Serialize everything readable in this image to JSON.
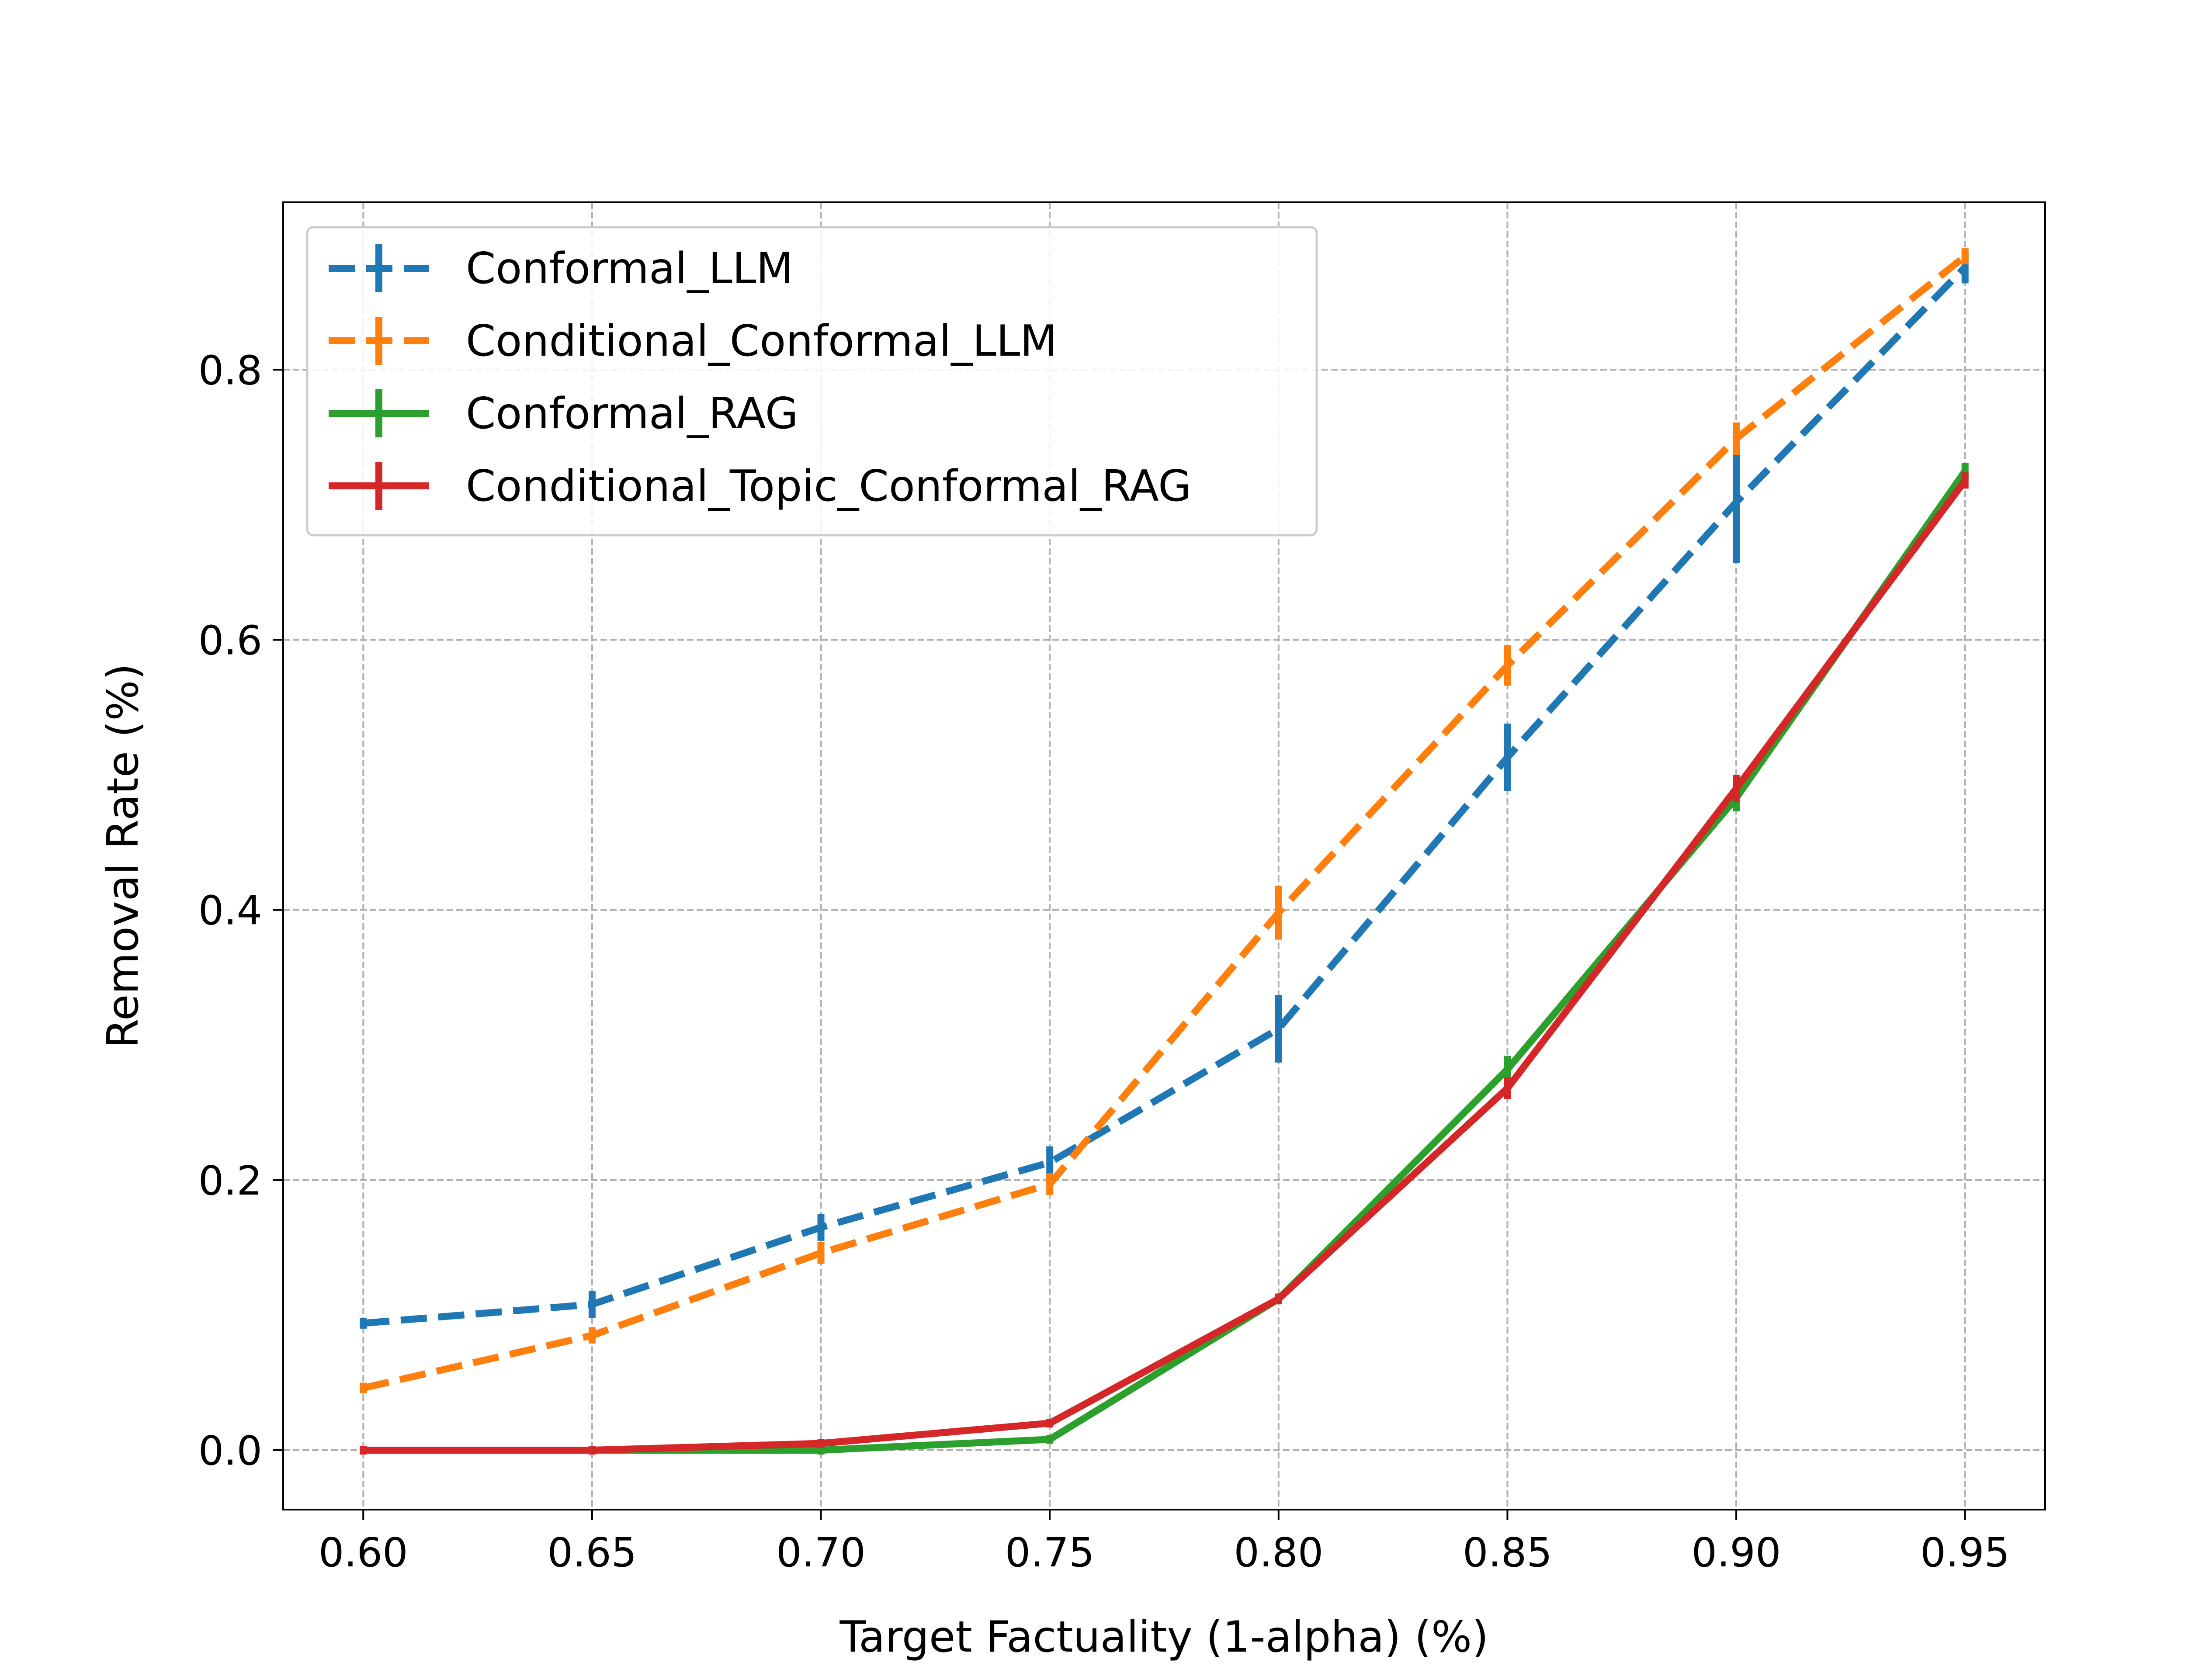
{
  "chart_data": {
    "type": "line",
    "title": "",
    "xlabel": "Target Factuality (1-alpha) (%)",
    "ylabel": "Removal Rate (%)",
    "xlim": [
      0.5825,
      0.9675
    ],
    "ylim": [
      -0.044,
      0.924
    ],
    "x": [
      0.6,
      0.65,
      0.7,
      0.75,
      0.8,
      0.85,
      0.9,
      0.95
    ],
    "x_tick_values": [
      0.6,
      0.65,
      0.7,
      0.75,
      0.8,
      0.85,
      0.9,
      0.95
    ],
    "x_tick_labels": [
      "0.60",
      "0.65",
      "0.70",
      "0.75",
      "0.80",
      "0.85",
      "0.90",
      "0.95"
    ],
    "y_tick_values": [
      0.0,
      0.2,
      0.4,
      0.6,
      0.8
    ],
    "y_tick_labels": [
      "0.0",
      "0.2",
      "0.4",
      "0.6",
      "0.8"
    ],
    "grid": true,
    "legend_position": "upper-left",
    "series": [
      {
        "name": "Conformal_LLM",
        "color": "#1f77b4",
        "dashed": true,
        "values": [
          0.094,
          0.108,
          0.165,
          0.213,
          0.312,
          0.513,
          0.702,
          0.876
        ],
        "errors": [
          0.004,
          0.01,
          0.01,
          0.012,
          0.025,
          0.025,
          0.045,
          0.012
        ]
      },
      {
        "name": "Conditional_Conformal_LLM",
        "color": "#ff7f0e",
        "dashed": true,
        "values": [
          0.046,
          0.085,
          0.146,
          0.197,
          0.398,
          0.581,
          0.749,
          0.884
        ],
        "errors": [
          0.004,
          0.006,
          0.008,
          0.008,
          0.02,
          0.015,
          0.012,
          0.006
        ]
      },
      {
        "name": "Conformal_RAG",
        "color": "#2ca02c",
        "dashed": false,
        "values": [
          0.0,
          0.0,
          0.0,
          0.008,
          0.112,
          0.282,
          0.483,
          0.725
        ],
        "errors": [
          0.001,
          0.001,
          0.001,
          0.003,
          0.004,
          0.01,
          0.01,
          0.006
        ]
      },
      {
        "name": "Conditional_Topic_Conformal_RAG",
        "color": "#d62728",
        "dashed": false,
        "values": [
          0.0,
          0.0,
          0.005,
          0.02,
          0.112,
          0.268,
          0.49,
          0.718
        ],
        "errors": [
          0.001,
          0.001,
          0.002,
          0.003,
          0.004,
          0.008,
          0.01,
          0.006
        ]
      }
    ]
  }
}
